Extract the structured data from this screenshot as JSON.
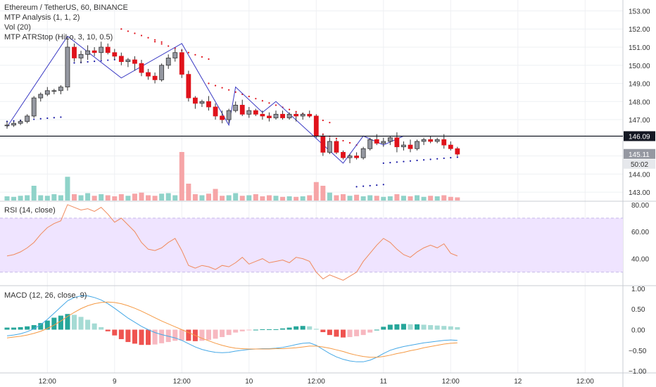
{
  "legend": {
    "symbol": "Ethereum / TetherUS, 60, BINANCE",
    "ind1": "MTP Analysis (1, 1, 2)",
    "ind2": "Vol (20)",
    "ind3": "MTP ATRStop (HiLo, 3, 10, 0.5)"
  },
  "rsi_label": "RSI (14, close)",
  "macd_label": "MACD (12, 26, close, 9)",
  "colors": {
    "up": "#9598a1",
    "up_border": "#333333",
    "down": "#e0121b",
    "stop_up": "#1a1aa6",
    "stop_down": "#e0121b",
    "zigzag": "#3b3bc4",
    "rsi": "#f08a5d",
    "rsi_band": "#efe4ff",
    "macd": "#45a8e6",
    "signal": "#f59a45",
    "hist_pos_strong": "#26a69a",
    "hist_pos_weak": "#a5dbd4",
    "hist_neg_strong": "#ef5350",
    "hist_neg_weak": "#f7b8c0",
    "vol_up": "#8fd3c9",
    "vol_down": "#f6a5a7"
  },
  "chart_data": [
    {
      "type": "candlestick",
      "title": "Ethereum / TetherUS, 60, BINANCE",
      "x_tick_labels": [
        "12:00",
        "9",
        "12:00",
        "10",
        "12:00",
        "11",
        "12:00",
        "12",
        "12:00"
      ],
      "y_ticks": [
        143.0,
        144.0,
        145.0,
        146.0,
        147.0,
        148.0,
        149.0,
        150.0,
        151.0,
        152.0,
        153.0
      ],
      "ylim": [
        142.5,
        153.6
      ],
      "last_price": "145.11",
      "countdown": "50:02",
      "horizontal_line": "146.09",
      "candles": [
        [
          146.7,
          146.9,
          146.5,
          146.7
        ],
        [
          146.7,
          146.9,
          146.6,
          146.8
        ],
        [
          146.8,
          147.0,
          146.7,
          146.9
        ],
        [
          146.9,
          147.3,
          146.8,
          147.2
        ],
        [
          147.2,
          148.3,
          147.1,
          148.2
        ],
        [
          148.2,
          148.5,
          148.0,
          148.4
        ],
        [
          148.4,
          148.8,
          148.3,
          148.6
        ],
        [
          148.6,
          148.7,
          148.4,
          148.6
        ],
        [
          148.6,
          148.9,
          148.4,
          148.8
        ],
        [
          148.8,
          151.6,
          148.6,
          151.0
        ],
        [
          151.0,
          151.2,
          150.2,
          150.4
        ],
        [
          150.4,
          150.8,
          150.1,
          150.6
        ],
        [
          150.6,
          151.1,
          150.3,
          150.8
        ],
        [
          150.8,
          151.0,
          150.5,
          150.7
        ],
        [
          150.7,
          151.3,
          150.3,
          151.0
        ],
        [
          151.0,
          151.2,
          150.6,
          150.7
        ],
        [
          150.7,
          150.9,
          150.3,
          150.5
        ],
        [
          150.5,
          150.7,
          150.0,
          150.2
        ],
        [
          150.2,
          150.4,
          149.9,
          150.3
        ],
        [
          150.3,
          150.5,
          149.7,
          150.1
        ],
        [
          150.1,
          150.3,
          149.4,
          149.6
        ],
        [
          149.6,
          149.8,
          149.2,
          149.4
        ],
        [
          149.4,
          149.6,
          149.0,
          149.2
        ],
        [
          149.2,
          150.1,
          149.1,
          150.0
        ],
        [
          150.0,
          150.6,
          149.8,
          150.4
        ],
        [
          150.4,
          150.9,
          150.2,
          150.7
        ],
        [
          150.7,
          150.9,
          149.3,
          149.5
        ],
        [
          149.5,
          149.7,
          148.0,
          148.2
        ],
        [
          148.2,
          148.3,
          147.6,
          147.9
        ],
        [
          147.9,
          148.1,
          147.7,
          148.0
        ],
        [
          148.0,
          148.3,
          147.5,
          147.7
        ],
        [
          147.7,
          147.9,
          147.0,
          147.2
        ],
        [
          147.2,
          147.5,
          146.8,
          147.0
        ],
        [
          147.0,
          147.6,
          146.8,
          147.5
        ],
        [
          147.5,
          148.0,
          147.4,
          147.8
        ],
        [
          147.8,
          148.1,
          147.2,
          147.3
        ],
        [
          147.3,
          147.7,
          147.1,
          147.5
        ],
        [
          147.5,
          147.6,
          147.2,
          147.3
        ],
        [
          147.3,
          147.5,
          147.0,
          147.2
        ],
        [
          147.2,
          147.4,
          146.9,
          147.1
        ],
        [
          147.1,
          147.5,
          147.0,
          147.3
        ],
        [
          147.3,
          147.5,
          147.0,
          147.1
        ],
        [
          147.1,
          147.4,
          147.0,
          147.3
        ],
        [
          147.3,
          147.4,
          146.9,
          147.2
        ],
        [
          147.2,
          147.4,
          147.0,
          147.3
        ],
        [
          147.3,
          147.5,
          147.1,
          147.2
        ],
        [
          147.2,
          147.3,
          146.0,
          146.1
        ],
        [
          146.1,
          146.2,
          145.0,
          145.2
        ],
        [
          145.2,
          146.0,
          145.1,
          145.8
        ],
        [
          145.8,
          145.9,
          145.1,
          145.2
        ],
        [
          145.2,
          145.3,
          144.8,
          144.9
        ],
        [
          144.9,
          145.1,
          144.6,
          145.0
        ],
        [
          145.0,
          145.2,
          144.8,
          144.9
        ],
        [
          144.9,
          145.5,
          144.8,
          145.4
        ],
        [
          145.4,
          146.0,
          145.3,
          145.9
        ],
        [
          145.9,
          146.2,
          145.6,
          145.7
        ],
        [
          145.7,
          146.0,
          145.5,
          145.8
        ],
        [
          145.8,
          146.1,
          145.6,
          146.0
        ],
        [
          146.0,
          146.3,
          145.2,
          145.5
        ],
        [
          145.5,
          145.8,
          145.3,
          145.6
        ],
        [
          145.6,
          145.9,
          145.2,
          145.4
        ],
        [
          145.4,
          145.9,
          145.3,
          145.8
        ],
        [
          145.8,
          146.0,
          145.6,
          145.9
        ],
        [
          145.9,
          146.1,
          145.7,
          145.8
        ],
        [
          145.8,
          146.0,
          145.7,
          145.9
        ],
        [
          145.9,
          146.2,
          145.4,
          145.6
        ],
        [
          145.6,
          145.8,
          145.3,
          145.4
        ],
        [
          145.4,
          145.5,
          145.0,
          145.1
        ]
      ],
      "volume": [
        0.08,
        0.07,
        0.09,
        0.1,
        0.28,
        0.1,
        0.09,
        0.12,
        0.1,
        0.45,
        0.12,
        0.1,
        0.14,
        0.09,
        0.12,
        0.1,
        0.08,
        0.12,
        0.09,
        0.13,
        0.15,
        0.1,
        0.09,
        0.13,
        0.14,
        0.1,
        0.92,
        0.32,
        0.12,
        0.1,
        0.13,
        0.22,
        0.09,
        0.1,
        0.14,
        0.09,
        0.1,
        0.12,
        0.08,
        0.1,
        0.09,
        0.07,
        0.08,
        0.07,
        0.08,
        0.1,
        0.35,
        0.28,
        0.15,
        0.1,
        0.12,
        0.09,
        0.11,
        0.08,
        0.1,
        0.09,
        0.07,
        0.08,
        0.12,
        0.09,
        0.08,
        0.1,
        0.07,
        0.09,
        0.08,
        0.1,
        0.07,
        0.06
      ]
    },
    {
      "type": "line",
      "title": "RSI (14, close)",
      "y_ticks": [
        40.0,
        60.0,
        80.0
      ],
      "ylim": [
        20,
        82
      ],
      "band": [
        30,
        70
      ],
      "values": [
        42,
        43,
        45,
        48,
        52,
        58,
        63,
        66,
        68,
        80,
        78,
        76,
        77,
        75,
        78,
        73,
        67,
        70,
        65,
        60,
        52,
        47,
        46,
        48,
        52,
        55,
        46,
        35,
        33,
        35,
        34,
        32,
        35,
        34,
        37,
        41,
        36,
        38,
        40,
        37,
        38,
        39,
        37,
        41,
        40,
        38,
        30,
        25,
        28,
        26,
        24,
        27,
        30,
        38,
        44,
        50,
        55,
        52,
        47,
        43,
        41,
        45,
        48,
        50,
        48,
        51,
        44,
        42
      ]
    },
    {
      "type": "line",
      "title": "MACD (12, 26, close, 9)",
      "y_ticks": [
        -1.0,
        -0.5,
        0.0,
        0.5,
        1.0
      ],
      "ylim": [
        -1.05,
        1.05
      ],
      "macd": [
        -0.15,
        -0.13,
        -0.1,
        -0.05,
        0.02,
        0.12,
        0.25,
        0.4,
        0.55,
        0.7,
        0.78,
        0.82,
        0.82,
        0.78,
        0.72,
        0.63,
        0.52,
        0.4,
        0.28,
        0.18,
        0.08,
        0.0,
        -0.07,
        -0.12,
        -0.16,
        -0.2,
        -0.26,
        -0.34,
        -0.42,
        -0.48,
        -0.52,
        -0.55,
        -0.56,
        -0.55,
        -0.52,
        -0.5,
        -0.48,
        -0.47,
        -0.46,
        -0.46,
        -0.45,
        -0.43,
        -0.4,
        -0.36,
        -0.33,
        -0.32,
        -0.38,
        -0.48,
        -0.58,
        -0.66,
        -0.72,
        -0.76,
        -0.78,
        -0.78,
        -0.74,
        -0.67,
        -0.58,
        -0.5,
        -0.45,
        -0.41,
        -0.38,
        -0.35,
        -0.32,
        -0.3,
        -0.28,
        -0.26,
        -0.25,
        -0.26
      ],
      "signal": [
        -0.2,
        -0.18,
        -0.16,
        -0.13,
        -0.09,
        -0.04,
        0.03,
        0.11,
        0.21,
        0.32,
        0.42,
        0.51,
        0.58,
        0.63,
        0.66,
        0.67,
        0.66,
        0.63,
        0.58,
        0.52,
        0.45,
        0.37,
        0.29,
        0.21,
        0.14,
        0.07,
        0.0,
        -0.07,
        -0.14,
        -0.21,
        -0.27,
        -0.33,
        -0.38,
        -0.42,
        -0.45,
        -0.46,
        -0.47,
        -0.47,
        -0.47,
        -0.47,
        -0.46,
        -0.46,
        -0.45,
        -0.44,
        -0.42,
        -0.4,
        -0.4,
        -0.42,
        -0.45,
        -0.49,
        -0.53,
        -0.58,
        -0.62,
        -0.65,
        -0.67,
        -0.67,
        -0.65,
        -0.62,
        -0.58,
        -0.55,
        -0.51,
        -0.48,
        -0.44,
        -0.41,
        -0.38,
        -0.35,
        -0.33,
        -0.32
      ],
      "histogram": [
        0.05,
        0.05,
        0.06,
        0.08,
        0.11,
        0.16,
        0.22,
        0.29,
        0.34,
        0.38,
        0.36,
        0.31,
        0.24,
        0.15,
        0.06,
        -0.04,
        -0.14,
        -0.23,
        -0.3,
        -0.34,
        -0.37,
        -0.37,
        -0.36,
        -0.33,
        -0.3,
        -0.27,
        -0.26,
        -0.27,
        -0.28,
        -0.27,
        -0.25,
        -0.22,
        -0.18,
        -0.13,
        -0.07,
        -0.04,
        -0.01,
        0.0,
        0.01,
        0.01,
        0.01,
        0.03,
        0.05,
        0.08,
        0.09,
        0.08,
        0.02,
        -0.06,
        -0.13,
        -0.17,
        -0.19,
        -0.18,
        -0.16,
        -0.13,
        -0.07,
        0.0,
        0.07,
        0.12,
        0.13,
        0.14,
        0.13,
        0.13,
        0.12,
        0.11,
        0.1,
        0.09,
        0.08,
        0.06
      ]
    }
  ]
}
